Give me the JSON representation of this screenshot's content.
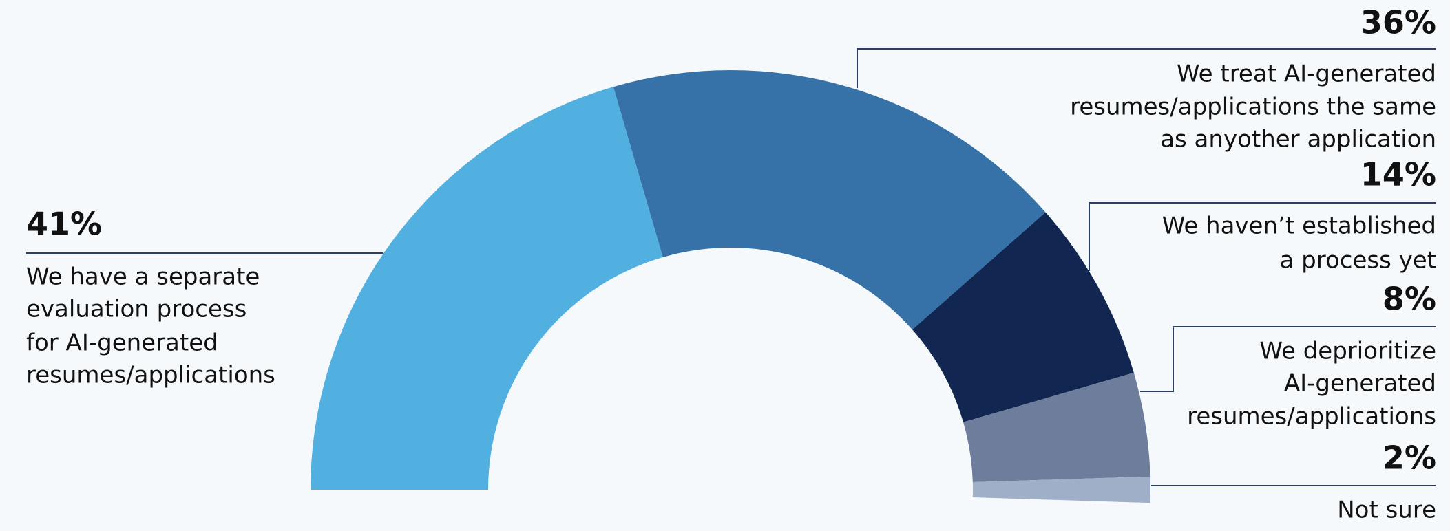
{
  "chart_data": {
    "type": "pie",
    "categories": [
      [
        "We have a separate",
        "evaluation process",
        "for AI-generated",
        "resumes/applications"
      ],
      [
        "We treat AI-generated",
        "resumes/applications the same",
        "as anyother application"
      ],
      [
        "We haven’t established",
        "a process yet"
      ],
      [
        "We deprioritize",
        "AI-generated",
        "resumes/applications"
      ],
      [
        "Not sure"
      ]
    ],
    "values": [
      41,
      36,
      14,
      8,
      2
    ],
    "value_labels": [
      "41%",
      "36%",
      "14%",
      "8%",
      "2%"
    ],
    "colors": [
      "#52b0e0",
      "#3672a8",
      "#112751",
      "#6e7d9c",
      "#9fafc8"
    ]
  }
}
